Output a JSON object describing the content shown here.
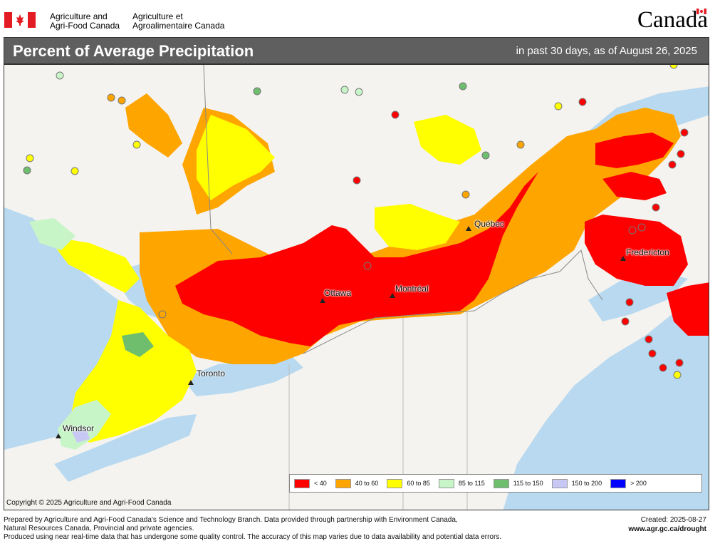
{
  "header": {
    "org_en_line1": "Agriculture and",
    "org_en_line2": "Agri-Food Canada",
    "org_fr_line1": "Agriculture et",
    "org_fr_line2": "Agroalimentaire Canada",
    "wordmark": "Canada"
  },
  "title_bar": {
    "title": "Percent of Average Precipitation",
    "subtitle": "in past 30 days, as of August 26, 2025"
  },
  "map": {
    "cities": [
      {
        "name": "Québec"
      },
      {
        "name": "Fredericton"
      },
      {
        "name": "Ottawa"
      },
      {
        "name": "Montréal"
      },
      {
        "name": "Toronto"
      },
      {
        "name": "Windsor"
      }
    ],
    "copyright": "Copyright © 2025 Agriculture and Agri-Food Canada"
  },
  "legend": {
    "items": [
      {
        "label": "< 40",
        "color": "#ff0000"
      },
      {
        "label": "40 to 60",
        "color": "#ffa500"
      },
      {
        "label": "60 to 85",
        "color": "#ffff00"
      },
      {
        "label": "85 to 115",
        "color": "#c8f5c8"
      },
      {
        "label": "115 to 150",
        "color": "#6ebe6e"
      },
      {
        "label": "150 to 200",
        "color": "#c8c8f5"
      },
      {
        "label": "> 200",
        "color": "#0000ff"
      }
    ]
  },
  "footer": {
    "line1": "Prepared by Agriculture and Agri-Food Canada's Science and Technology Branch. Data provided through partnership with Environment Canada,",
    "line2": "Natural Resources Canada, Provincial and private agencies.",
    "line3": "Produced using near real-time data that has undergone some quality control. The accuracy of this map varies due to data availability and potential data errors.",
    "created": "Created: 2025-08-27",
    "url": "www.agr.gc.ca/drought"
  },
  "colors": {
    "water": "#b8d9f0",
    "land": "#f4f3ef",
    "title_bar": "#5f5f5f"
  }
}
